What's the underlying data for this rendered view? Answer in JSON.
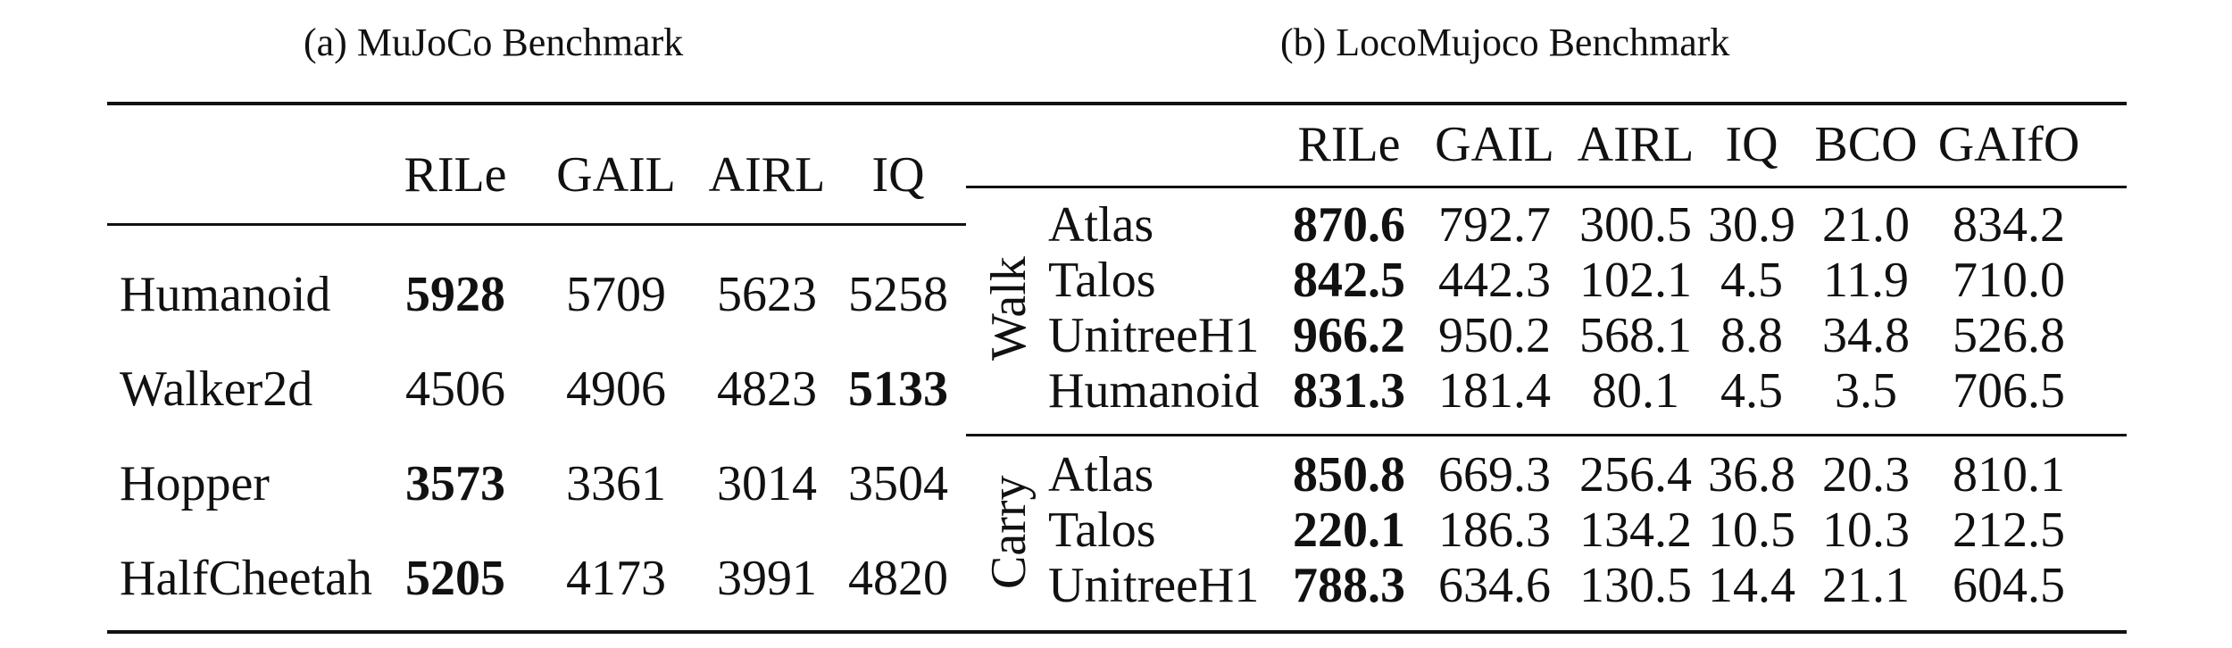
{
  "table_a": {
    "caption": "(a) MuJoCo Benchmark",
    "columns": [
      "RILe",
      "GAIL",
      "AIRL",
      "IQ"
    ],
    "rows": [
      {
        "env": "Humanoid",
        "values": [
          "5928",
          "5709",
          "5623",
          "5258"
        ],
        "best": 0
      },
      {
        "env": "Walker2d",
        "values": [
          "4506",
          "4906",
          "4823",
          "5133"
        ],
        "best": 3
      },
      {
        "env": "Hopper",
        "values": [
          "3573",
          "3361",
          "3014",
          "3504"
        ],
        "best": 0
      },
      {
        "env": "HalfCheetah",
        "values": [
          "5205",
          "4173",
          "3991",
          "4820"
        ],
        "best": 0
      }
    ]
  },
  "table_b": {
    "caption": "(b) LocoMujoco Benchmark",
    "columns": [
      "RILe",
      "GAIL",
      "AIRL",
      "IQ",
      "BCO",
      "GAIfO"
    ],
    "groups": [
      {
        "name": "Walk",
        "rows": [
          {
            "robot": "Atlas",
            "values": [
              "870.6",
              "792.7",
              "300.5",
              "30.9",
              "21.0",
              "834.2"
            ],
            "best": 0
          },
          {
            "robot": "Talos",
            "values": [
              "842.5",
              "442.3",
              "102.1",
              "4.5",
              "11.9",
              "710.0"
            ],
            "best": 0
          },
          {
            "robot": "UnitreeH1",
            "values": [
              "966.2",
              "950.2",
              "568.1",
              "8.8",
              "34.8",
              "526.8"
            ],
            "best": 0
          },
          {
            "robot": "Humanoid",
            "values": [
              "831.3",
              "181.4",
              "80.1",
              "4.5",
              "3.5",
              "706.5"
            ],
            "best": 0
          }
        ]
      },
      {
        "name": "Carry",
        "rows": [
          {
            "robot": "Atlas",
            "values": [
              "850.8",
              "669.3",
              "256.4",
              "36.8",
              "20.3",
              "810.1"
            ],
            "best": 0
          },
          {
            "robot": "Talos",
            "values": [
              "220.1",
              "186.3",
              "134.2",
              "10.5",
              "10.3",
              "212.5"
            ],
            "best": 0
          },
          {
            "robot": "UnitreeH1",
            "values": [
              "788.3",
              "634.6",
              "130.5",
              "14.4",
              "21.1",
              "604.5"
            ],
            "best": 0
          }
        ]
      }
    ]
  }
}
